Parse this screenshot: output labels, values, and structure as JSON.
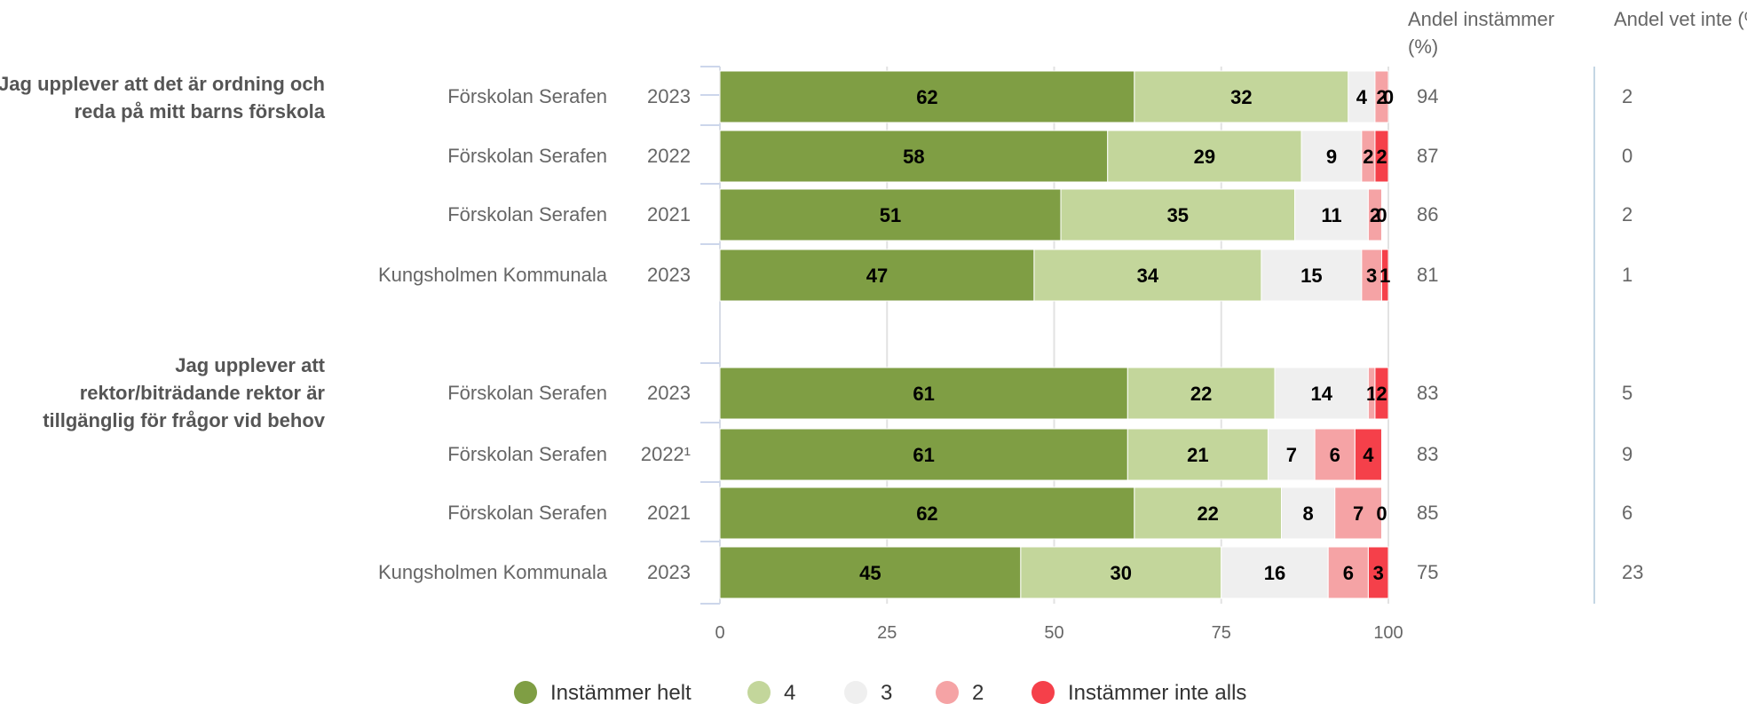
{
  "chart_data": {
    "type": "bar",
    "orientation": "horizontal",
    "stacked": true,
    "xlim": [
      0,
      100
    ],
    "xticks": [
      "0",
      "25",
      "50",
      "75",
      "100"
    ],
    "grid": true,
    "legend_position": "bottom",
    "series": [
      {
        "name": "Instämmer helt",
        "color": "#7f9e44"
      },
      {
        "name": "4",
        "color": "#c3d69b"
      },
      {
        "name": "3",
        "color": "#efefef"
      },
      {
        "name": "2",
        "color": "#f5a3a5"
      },
      {
        "name": "Instämmer inte alls",
        "color": "#f5404a"
      }
    ],
    "columns": [
      {
        "label": "Andel instämmer (%)"
      },
      {
        "label": "Andel vet inte (%)"
      }
    ],
    "groups": [
      {
        "question": "Jag upplever att det är ordning och reda på mitt barns förskola",
        "rows": [
          {
            "unit": "Förskolan Serafen",
            "year": "2023",
            "values": [
              62,
              32,
              4,
              2,
              0
            ],
            "labels": [
              "62",
              "32",
              "4",
              "2",
              "0"
            ],
            "agree": "94",
            "dontknow": "2"
          },
          {
            "unit": "Förskolan Serafen",
            "year": "2022",
            "values": [
              58,
              29,
              9,
              2,
              2
            ],
            "labels": [
              "58",
              "29",
              "9",
              "2",
              "2"
            ],
            "agree": "87",
            "dontknow": "0"
          },
          {
            "unit": "Förskolan Serafen",
            "year": "2021",
            "values": [
              51,
              35,
              11,
              2,
              0
            ],
            "labels": [
              "51",
              "35",
              "11",
              "2",
              "0"
            ],
            "agree": "86",
            "dontknow": "2"
          },
          {
            "unit": "Kungsholmen Kommunala",
            "year": "2023",
            "values": [
              47,
              34,
              15,
              3,
              1
            ],
            "labels": [
              "47",
              "34",
              "15",
              "3",
              "1"
            ],
            "agree": "81",
            "dontknow": "1"
          }
        ]
      },
      {
        "question": "Jag upplever att rektor/biträdande rektor är tillgänglig för frågor vid behov",
        "rows": [
          {
            "unit": "Förskolan Serafen",
            "year": "2023",
            "values": [
              61,
              22,
              14,
              1,
              2
            ],
            "labels": [
              "61",
              "22",
              "14",
              "1",
              "2"
            ],
            "agree": "83",
            "dontknow": "5"
          },
          {
            "unit": "Förskolan Serafen",
            "year": "2022¹",
            "values": [
              61,
              21,
              7,
              6,
              4
            ],
            "labels": [
              "61",
              "21",
              "7",
              "6",
              "4"
            ],
            "agree": "83",
            "dontknow": "9"
          },
          {
            "unit": "Förskolan Serafen",
            "year": "2021",
            "values": [
              62,
              22,
              8,
              7,
              0
            ],
            "labels": [
              "62",
              "22",
              "8",
              "7",
              "0"
            ],
            "agree": "85",
            "dontknow": "6"
          },
          {
            "unit": "Kungsholmen Kommunala",
            "year": "2023",
            "values": [
              45,
              30,
              16,
              6,
              3
            ],
            "labels": [
              "45",
              "30",
              "16",
              "6",
              "3"
            ],
            "agree": "75",
            "dontknow": "23"
          }
        ]
      }
    ]
  }
}
